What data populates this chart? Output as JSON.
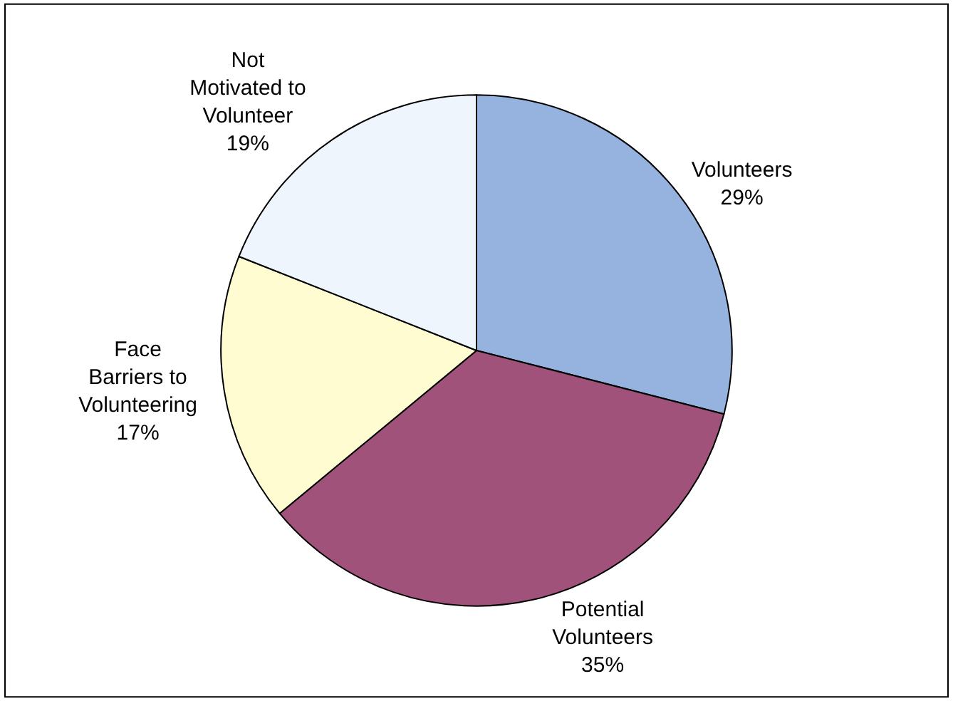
{
  "chart_data": {
    "type": "pie",
    "categories": [
      "Volunteers",
      "Potential Volunteers",
      "Face Barriers to Volunteering",
      "Not Motivated to Volunteer"
    ],
    "values": [
      29,
      35,
      17,
      19
    ],
    "value_labels": [
      "29%",
      "35%",
      "17%",
      "19%"
    ],
    "colors": [
      "#95b3de",
      "#a0527a",
      "#fefcd0",
      "#eef5fd"
    ],
    "legend": false
  }
}
